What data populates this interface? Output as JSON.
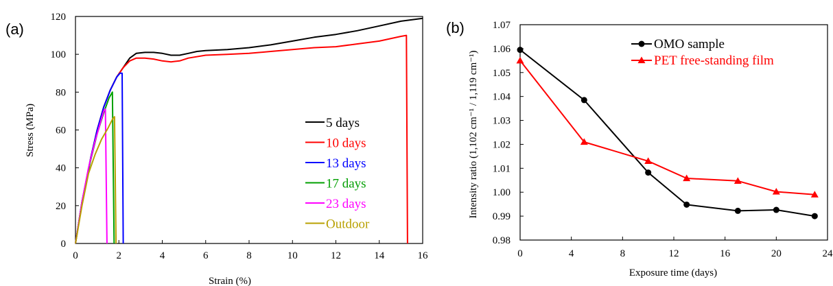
{
  "chart_data": [
    {
      "panel": "(a)",
      "type": "line",
      "xlabel": "Strain (%)",
      "ylabel": "Stress (MPa)",
      "xlim": [
        0,
        16
      ],
      "ylim": [
        0,
        120
      ],
      "xticks": [
        0,
        2,
        4,
        6,
        8,
        10,
        12,
        14,
        16
      ],
      "yticks": [
        0,
        20,
        40,
        60,
        80,
        100,
        120
      ],
      "legend_position": "lower-right",
      "series": [
        {
          "name": "5 days",
          "color": "#000000",
          "points": [
            [
              0,
              0
            ],
            [
              0.3,
              22
            ],
            [
              0.7,
              45
            ],
            [
              1.0,
              60
            ],
            [
              1.3,
              72
            ],
            [
              1.6,
              81
            ],
            [
              1.9,
              88
            ],
            [
              2.2,
              93
            ],
            [
              2.5,
              98
            ],
            [
              2.8,
              100.5
            ],
            [
              3.2,
              101
            ],
            [
              3.6,
              101
            ],
            [
              4.0,
              100.5
            ],
            [
              4.4,
              99.5
            ],
            [
              4.8,
              99.5
            ],
            [
              5.2,
              100.5
            ],
            [
              5.6,
              101.5
            ],
            [
              6,
              102
            ],
            [
              7,
              102.5
            ],
            [
              8,
              103.5
            ],
            [
              9,
              105
            ],
            [
              10,
              107
            ],
            [
              11,
              109
            ],
            [
              12,
              110.5
            ],
            [
              13,
              112.5
            ],
            [
              14,
              115
            ],
            [
              15,
              117.5
            ],
            [
              16,
              119
            ]
          ]
        },
        {
          "name": "10 days",
          "color": "#ff0000",
          "points": [
            [
              0,
              0
            ],
            [
              0.3,
              22
            ],
            [
              0.7,
              45
            ],
            [
              1.0,
              60
            ],
            [
              1.3,
              72
            ],
            [
              1.6,
              81
            ],
            [
              1.9,
              88
            ],
            [
              2.2,
              93
            ],
            [
              2.5,
              96.5
            ],
            [
              2.8,
              98
            ],
            [
              3.2,
              98
            ],
            [
              3.6,
              97.5
            ],
            [
              4.0,
              96.5
            ],
            [
              4.4,
              96
            ],
            [
              4.8,
              96.5
            ],
            [
              5.2,
              98
            ],
            [
              6,
              99.5
            ],
            [
              7,
              100
            ],
            [
              8,
              100.5
            ],
            [
              9,
              101.5
            ],
            [
              10,
              102.5
            ],
            [
              11,
              103.5
            ],
            [
              12,
              104
            ],
            [
              13,
              105.5
            ],
            [
              14,
              107
            ],
            [
              15,
              109.5
            ],
            [
              15.25,
              110
            ],
            [
              15.3,
              0
            ]
          ]
        },
        {
          "name": "13 days",
          "color": "#0000ff",
          "points": [
            [
              0,
              0
            ],
            [
              0.3,
              22
            ],
            [
              0.7,
              45
            ],
            [
              1.0,
              60
            ],
            [
              1.3,
              72
            ],
            [
              1.6,
              81
            ],
            [
              1.9,
              88
            ],
            [
              2.05,
              90
            ],
            [
              2.15,
              90
            ],
            [
              2.2,
              0
            ]
          ]
        },
        {
          "name": "17 days",
          "color": "#00a000",
          "points": [
            [
              0,
              0
            ],
            [
              0.3,
              22
            ],
            [
              0.7,
              44
            ],
            [
              1.0,
              58
            ],
            [
              1.3,
              69
            ],
            [
              1.55,
              77
            ],
            [
              1.7,
              80
            ],
            [
              1.78,
              0
            ]
          ]
        },
        {
          "name": "23 days",
          "color": "#ff00ff",
          "points": [
            [
              0,
              0
            ],
            [
              0.3,
              22
            ],
            [
              0.6,
              40
            ],
            [
              0.9,
              54
            ],
            [
              1.15,
              64
            ],
            [
              1.3,
              70
            ],
            [
              1.38,
              71
            ],
            [
              1.45,
              0
            ]
          ]
        },
        {
          "name": "Outdoor",
          "color": "#b8a000",
          "points": [
            [
              0,
              0
            ],
            [
              0.3,
              20
            ],
            [
              0.6,
              37
            ],
            [
              0.9,
              47
            ],
            [
              1.2,
              55
            ],
            [
              1.5,
              61
            ],
            [
              1.72,
              66
            ],
            [
              1.8,
              67
            ],
            [
              1.87,
              0
            ]
          ]
        }
      ]
    },
    {
      "panel": "(b)",
      "type": "line",
      "xlabel": "Exposure time (days)",
      "ylabel": "Intensity ratio (1,102 cm⁻¹ / 1,119 cm⁻¹)",
      "xlim": [
        0,
        24
      ],
      "ylim": [
        0.98,
        1.07
      ],
      "xticks": [
        0,
        4,
        8,
        12,
        16,
        20,
        24
      ],
      "yticks": [
        0.98,
        0.99,
        1.0,
        1.01,
        1.02,
        1.03,
        1.04,
        1.05,
        1.06,
        1.07
      ],
      "ytick_labels": [
        "0.98",
        "0.99",
        "1.00",
        "1.01",
        "1.02",
        "1.03",
        "1.04",
        "1.05",
        "1.06",
        "1.07"
      ],
      "legend_position": "top-right",
      "series": [
        {
          "name": "OMO sample",
          "color": "#000000",
          "marker": "circle",
          "x": [
            0,
            5,
            10,
            13,
            17,
            20,
            23
          ],
          "y": [
            1.0595,
            1.0385,
            1.0082,
            0.9948,
            0.9922,
            0.9926,
            0.99
          ]
        },
        {
          "name": "PET free-standing film",
          "color": "#ff0000",
          "marker": "triangle",
          "x": [
            0,
            5,
            10,
            13,
            17,
            20,
            23
          ],
          "y": [
            1.055,
            1.021,
            1.013,
            1.0058,
            1.0047,
            1.0002,
            0.999
          ]
        }
      ]
    }
  ]
}
